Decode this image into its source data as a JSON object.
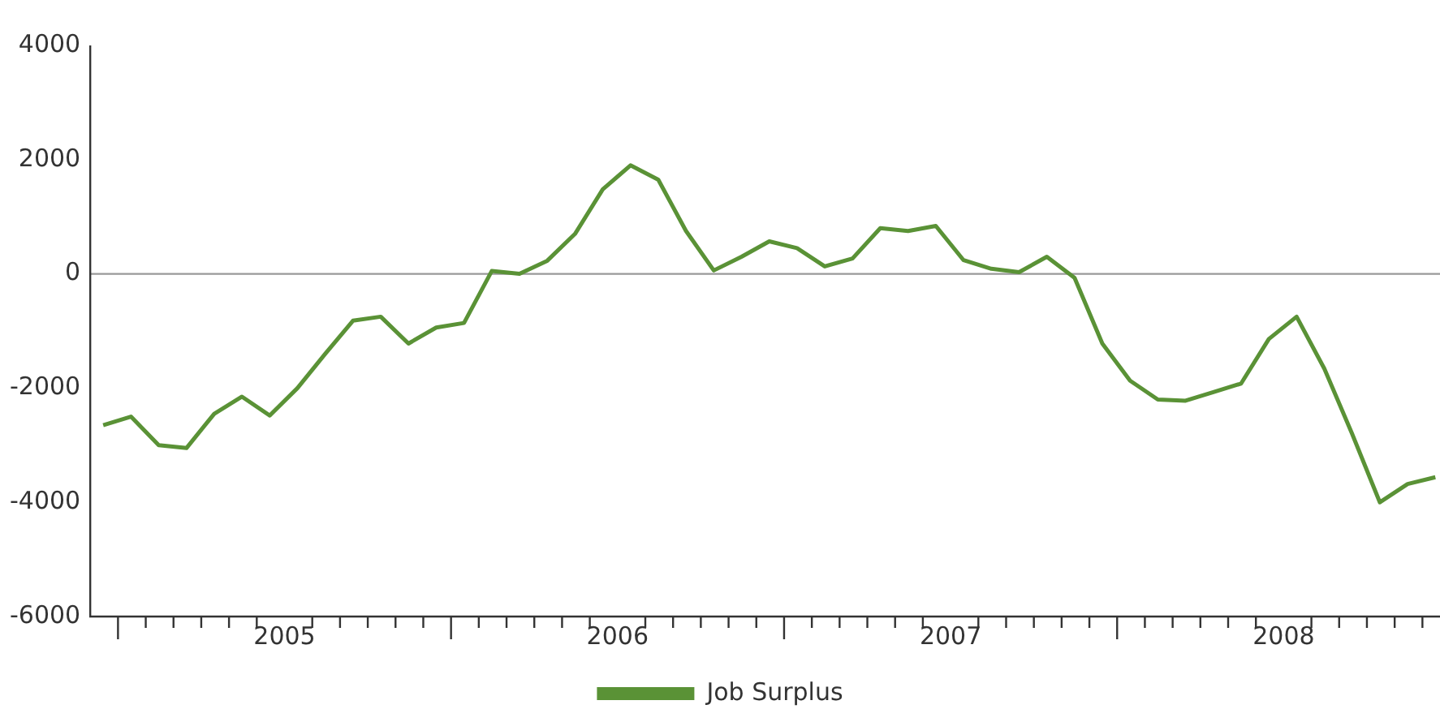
{
  "chart_data": {
    "type": "line",
    "x": [
      "2004-12-15",
      "2005-01-15",
      "2005-02-15",
      "2005-03-15",
      "2005-04-15",
      "2005-05-15",
      "2005-06-15",
      "2005-07-15",
      "2005-08-15",
      "2005-09-15",
      "2005-10-15",
      "2005-11-15",
      "2005-12-15",
      "2006-01-15",
      "2006-02-15",
      "2006-03-15",
      "2006-04-15",
      "2006-05-15",
      "2006-06-15",
      "2006-07-15",
      "2006-08-15",
      "2006-09-15",
      "2006-10-15",
      "2006-11-15",
      "2006-12-15",
      "2007-01-15",
      "2007-02-15",
      "2007-03-15",
      "2007-04-15",
      "2007-05-15",
      "2007-06-15",
      "2007-07-15",
      "2007-08-15",
      "2007-09-15",
      "2007-10-15",
      "2007-11-15",
      "2007-12-15",
      "2008-01-15",
      "2008-02-15",
      "2008-03-15",
      "2008-04-15",
      "2008-05-15",
      "2008-06-15",
      "2008-07-15",
      "2008-08-15",
      "2008-09-15",
      "2008-10-15",
      "2008-11-15",
      "2008-12-15"
    ],
    "series": [
      {
        "name": "Job Surplus",
        "color": "#5a9236",
        "values": [
          -2650,
          -2500,
          -3000,
          -3050,
          -2450,
          -2150,
          -2480,
          -2000,
          -1400,
          -820,
          -750,
          -1220,
          -940,
          -860,
          50,
          0,
          230,
          700,
          1480,
          1900,
          1650,
          750,
          60,
          300,
          570,
          450,
          130,
          270,
          800,
          750,
          840,
          240,
          90,
          30,
          300,
          -70,
          -1220,
          -1870,
          -2200,
          -2220,
          -2070,
          -1920,
          -1140,
          -750,
          -1660,
          -2800,
          -4000,
          -3680,
          -3560
        ]
      }
    ],
    "xlim": [
      "2004-12-01",
      "2008-12-20"
    ],
    "xticks": [
      {
        "value": "2005-01-01",
        "label": null
      },
      {
        "value": "2005-02-01",
        "label": null
      },
      {
        "value": "2005-03-01",
        "label": null
      },
      {
        "value": "2005-04-01",
        "label": null
      },
      {
        "value": "2005-05-01",
        "label": null
      },
      {
        "value": "2005-06-01",
        "label": null
      },
      {
        "value": "2005-07-01",
        "label": "2005"
      },
      {
        "value": "2005-08-01",
        "label": null
      },
      {
        "value": "2005-09-01",
        "label": null
      },
      {
        "value": "2005-10-01",
        "label": null
      },
      {
        "value": "2005-11-01",
        "label": null
      },
      {
        "value": "2005-12-01",
        "label": null
      },
      {
        "value": "2006-01-01",
        "label": null
      },
      {
        "value": "2006-02-01",
        "label": null
      },
      {
        "value": "2006-03-01",
        "label": null
      },
      {
        "value": "2006-04-01",
        "label": null
      },
      {
        "value": "2006-05-01",
        "label": null
      },
      {
        "value": "2006-06-01",
        "label": null
      },
      {
        "value": "2006-07-01",
        "label": "2006"
      },
      {
        "value": "2006-08-01",
        "label": null
      },
      {
        "value": "2006-09-01",
        "label": null
      },
      {
        "value": "2006-10-01",
        "label": null
      },
      {
        "value": "2006-11-01",
        "label": null
      },
      {
        "value": "2006-12-01",
        "label": null
      },
      {
        "value": "2007-01-01",
        "label": null
      },
      {
        "value": "2007-02-01",
        "label": null
      },
      {
        "value": "2007-03-01",
        "label": null
      },
      {
        "value": "2007-04-01",
        "label": null
      },
      {
        "value": "2007-05-01",
        "label": null
      },
      {
        "value": "2007-06-01",
        "label": null
      },
      {
        "value": "2007-07-01",
        "label": "2007"
      },
      {
        "value": "2007-08-01",
        "label": null
      },
      {
        "value": "2007-09-01",
        "label": null
      },
      {
        "value": "2007-10-01",
        "label": null
      },
      {
        "value": "2007-11-01",
        "label": null
      },
      {
        "value": "2007-12-01",
        "label": null
      },
      {
        "value": "2008-01-01",
        "label": null
      },
      {
        "value": "2008-02-01",
        "label": null
      },
      {
        "value": "2008-03-01",
        "label": null
      },
      {
        "value": "2008-04-01",
        "label": null
      },
      {
        "value": "2008-05-01",
        "label": null
      },
      {
        "value": "2008-06-01",
        "label": null
      },
      {
        "value": "2008-07-01",
        "label": "2008"
      },
      {
        "value": "2008-08-01",
        "label": null
      },
      {
        "value": "2008-09-01",
        "label": null
      },
      {
        "value": "2008-10-01",
        "label": null
      },
      {
        "value": "2008-11-01",
        "label": null
      },
      {
        "value": "2008-12-01",
        "label": null
      }
    ],
    "ylim": [
      -6000,
      4000
    ],
    "yticks": [
      -6000,
      -4000,
      -2000,
      0,
      2000,
      4000
    ],
    "ref_lines": [
      {
        "axis": "y",
        "value": 0,
        "color": "#999999"
      }
    ],
    "legend": "bottom",
    "marker": "none",
    "line_style": "solid"
  }
}
